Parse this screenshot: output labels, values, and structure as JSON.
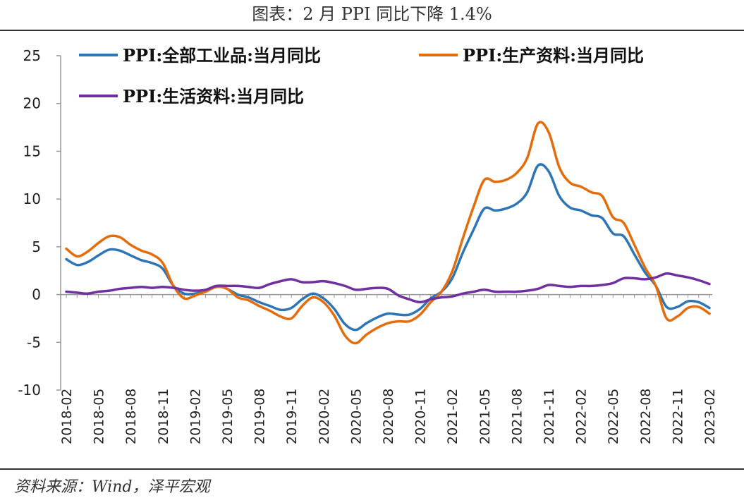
{
  "title": "图表：2 月 PPI 同比下降 1.4%",
  "source": "资料来源：Wind，泽平宏观",
  "chart_data": {
    "type": "line",
    "title": "图表：2 月 PPI 同比下降 1.4%",
    "ylim": [
      -10,
      25
    ],
    "yticks": [
      25,
      20,
      15,
      10,
      5,
      0,
      -5,
      -10
    ],
    "ytick_labels": [
      "25",
      "20",
      "15",
      "10",
      "5",
      "0",
      "-5",
      "-10"
    ],
    "grid": false,
    "legend": "top-left",
    "x": [
      "2018-02",
      "2018-03",
      "2018-04",
      "2018-05",
      "2018-06",
      "2018-07",
      "2018-08",
      "2018-09",
      "2018-10",
      "2018-11",
      "2018-12",
      "2019-01",
      "2019-02",
      "2019-03",
      "2019-04",
      "2019-05",
      "2019-06",
      "2019-07",
      "2019-08",
      "2019-09",
      "2019-10",
      "2019-11",
      "2019-12",
      "2020-01",
      "2020-02",
      "2020-03",
      "2020-04",
      "2020-05",
      "2020-06",
      "2020-07",
      "2020-08",
      "2020-09",
      "2020-10",
      "2020-11",
      "2020-12",
      "2021-01",
      "2021-02",
      "2021-03",
      "2021-04",
      "2021-05",
      "2021-06",
      "2021-07",
      "2021-08",
      "2021-09",
      "2021-10",
      "2021-11",
      "2021-12",
      "2022-01",
      "2022-02",
      "2022-03",
      "2022-04",
      "2022-05",
      "2022-06",
      "2022-07",
      "2022-08",
      "2022-09",
      "2022-10",
      "2022-11",
      "2022-12",
      "2023-01",
      "2023-02"
    ],
    "xtick_labels": [
      "2018-02",
      "2018-05",
      "2018-08",
      "2018-11",
      "2019-02",
      "2019-05",
      "2019-08",
      "2019-11",
      "2020-02",
      "2020-05",
      "2020-08",
      "2020-11",
      "2021-02",
      "2021-05",
      "2021-08",
      "2021-11",
      "2022-02",
      "2022-05",
      "2022-08",
      "2022-11",
      "2023-02"
    ],
    "series": [
      {
        "name": "PPI:全部工业品:当月同比",
        "color": "#2E75B6",
        "values": [
          3.7,
          3.1,
          3.4,
          4.1,
          4.7,
          4.6,
          4.1,
          3.6,
          3.3,
          2.7,
          0.9,
          0.1,
          0.1,
          0.4,
          0.9,
          0.6,
          0.0,
          -0.3,
          -0.8,
          -1.2,
          -1.6,
          -1.4,
          -0.5,
          0.1,
          -0.4,
          -1.5,
          -3.1,
          -3.7,
          -3.0,
          -2.4,
          -2.0,
          -2.1,
          -2.1,
          -1.5,
          -0.4,
          0.3,
          1.7,
          4.4,
          6.8,
          9.0,
          8.8,
          9.0,
          9.5,
          10.7,
          13.5,
          12.9,
          10.3,
          9.1,
          8.8,
          8.3,
          8.0,
          6.4,
          6.1,
          4.2,
          2.3,
          0.9,
          -1.3,
          -1.3,
          -0.7,
          -0.8,
          -1.4
        ]
      },
      {
        "name": "PPI:生产资料:当月同比",
        "color": "#E46C0A",
        "values": [
          4.8,
          4.0,
          4.5,
          5.4,
          6.1,
          6.0,
          5.2,
          4.6,
          4.2,
          3.3,
          0.9,
          -0.4,
          -0.1,
          0.3,
          0.8,
          0.6,
          -0.3,
          -0.6,
          -1.2,
          -1.7,
          -2.3,
          -2.5,
          -1.2,
          -0.3,
          -0.8,
          -2.2,
          -4.3,
          -5.1,
          -4.2,
          -3.5,
          -3.0,
          -2.8,
          -2.8,
          -2.1,
          -0.8,
          0.3,
          2.4,
          5.9,
          9.2,
          12.0,
          11.8,
          12.0,
          12.7,
          14.3,
          17.9,
          17.0,
          13.3,
          11.7,
          11.3,
          10.7,
          10.3,
          8.1,
          7.5,
          5.2,
          2.8,
          0.9,
          -2.5,
          -2.3,
          -1.4,
          -1.3,
          -2.0
        ]
      },
      {
        "name": "PPI:生活资料:当月同比",
        "color": "#7030A0",
        "values": [
          0.3,
          0.2,
          0.1,
          0.3,
          0.4,
          0.6,
          0.7,
          0.8,
          0.7,
          0.8,
          0.7,
          0.5,
          0.4,
          0.5,
          0.9,
          0.9,
          0.9,
          0.8,
          0.7,
          1.1,
          1.4,
          1.6,
          1.3,
          1.3,
          1.4,
          1.2,
          0.9,
          0.5,
          0.6,
          0.7,
          0.6,
          -0.1,
          -0.5,
          -0.8,
          -0.5,
          -0.3,
          -0.2,
          0.1,
          0.3,
          0.5,
          0.3,
          0.3,
          0.3,
          0.4,
          0.6,
          1.0,
          0.9,
          0.8,
          0.9,
          0.9,
          1.0,
          1.2,
          1.7,
          1.7,
          1.6,
          1.8,
          2.2,
          2.0,
          1.8,
          1.5,
          1.1
        ]
      }
    ]
  }
}
